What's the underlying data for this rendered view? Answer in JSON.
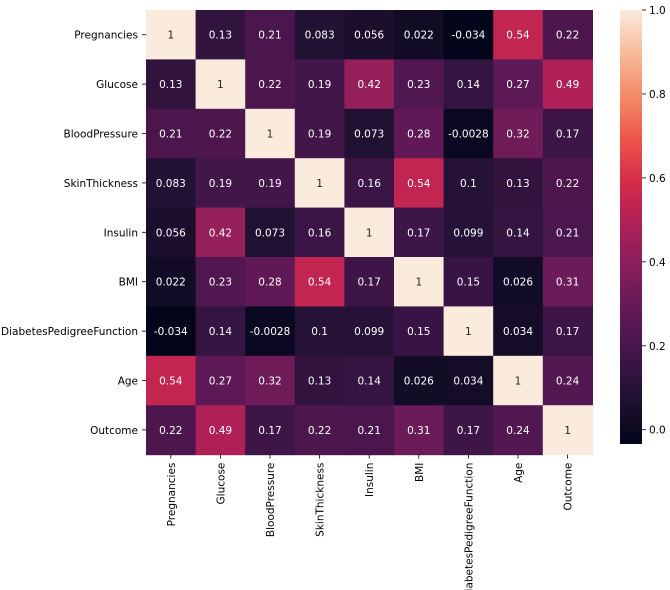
{
  "chart_data": {
    "type": "heatmap",
    "title": "",
    "xlabel": "",
    "ylabel": "",
    "rows": [
      "Pregnancies",
      "Glucose",
      "BloodPressure",
      "SkinThickness",
      "Insulin",
      "BMI",
      "DiabetesPedigreeFunction",
      "Age",
      "Outcome"
    ],
    "columns": [
      "Pregnancies",
      "Glucose",
      "BloodPressure",
      "SkinThickness",
      "Insulin",
      "BMI",
      "DiabetesPedigreeFunction",
      "Age",
      "Outcome"
    ],
    "values": [
      [
        1,
        0.13,
        0.21,
        0.083,
        0.056,
        0.022,
        -0.034,
        0.54,
        0.22
      ],
      [
        0.13,
        1,
        0.22,
        0.19,
        0.42,
        0.23,
        0.14,
        0.27,
        0.49
      ],
      [
        0.21,
        0.22,
        1,
        0.19,
        0.073,
        0.28,
        -0.0028,
        0.32,
        0.17
      ],
      [
        0.083,
        0.19,
        0.19,
        1,
        0.16,
        0.54,
        0.1,
        0.13,
        0.22
      ],
      [
        0.056,
        0.42,
        0.073,
        0.16,
        1,
        0.17,
        0.099,
        0.14,
        0.21
      ],
      [
        0.022,
        0.23,
        0.28,
        0.54,
        0.17,
        1,
        0.15,
        0.026,
        0.31
      ],
      [
        -0.034,
        0.14,
        -0.0028,
        0.1,
        0.099,
        0.15,
        1,
        0.034,
        0.17
      ],
      [
        0.54,
        0.27,
        0.32,
        0.13,
        0.14,
        0.026,
        0.034,
        1,
        0.24
      ],
      [
        0.22,
        0.49,
        0.17,
        0.22,
        0.21,
        0.31,
        0.17,
        0.24,
        1
      ]
    ],
    "colorscale": "rocket",
    "vmin": -0.034,
    "vmax": 1.0,
    "colorbar_ticks": [
      "0.0",
      "0.2",
      "0.4",
      "0.6",
      "0.8",
      "1.0"
    ],
    "grid": false,
    "legend": "colorbar-right"
  }
}
